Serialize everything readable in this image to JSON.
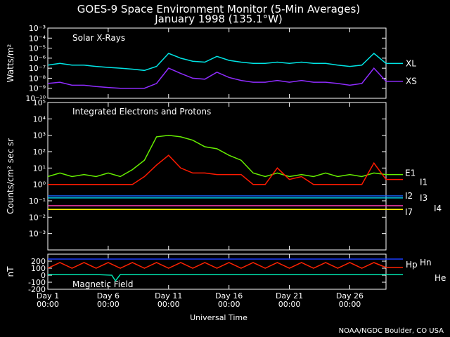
{
  "title": "GOES-9 Space Environment Monitor (5-Min Averages)",
  "subtitle": "January 1998 (135.1°W)",
  "credit": "NOAA/NGDC Boulder, CO USA",
  "colors": {
    "background": "#000000",
    "axes": "#ffffff",
    "xl": "#00e5e5",
    "xs": "#8f2cff",
    "e1": "#66ee00",
    "i1": "#ff1a00",
    "i2": "#1565ff",
    "i3": "#00c8e0",
    "i4": "#ff3fb0",
    "i7": "#ffee00",
    "hp": "#ff2200",
    "hn": "#1a3dff",
    "he": "#00e5b0"
  },
  "chart_data": [
    {
      "type": "line",
      "panel": "Solar X-Rays",
      "ylabel": "Watts/m²",
      "yscale": "log",
      "ylim": [
        1e-10,
        0.001
      ],
      "y_ticks": [
        "10⁻³",
        "10⁻⁴",
        "10⁻⁵",
        "10⁻⁶",
        "10⁻⁷",
        "10⁻⁸",
        "10⁻⁹",
        "10⁻¹⁰"
      ],
      "xlim": [
        1,
        29
      ],
      "series": [
        {
          "name": "XL",
          "colorKey": "xl",
          "x": [
            1,
            2,
            3,
            4,
            5,
            6,
            7,
            8,
            9,
            10,
            11,
            12,
            13,
            14,
            15,
            16,
            17,
            18,
            19,
            20,
            21,
            22,
            23,
            24,
            25,
            26,
            27,
            28,
            29
          ],
          "y": [
            2e-07,
            3e-07,
            2e-07,
            2e-07,
            1.5e-07,
            1.2e-07,
            1e-07,
            8e-08,
            6e-08,
            1.5e-07,
            3e-06,
            1e-06,
            5e-07,
            4e-07,
            1.5e-06,
            6e-07,
            4e-07,
            3e-07,
            3e-07,
            4e-07,
            3e-07,
            4e-07,
            3e-07,
            3e-07,
            2e-07,
            1.5e-07,
            2e-07,
            3e-06,
            3e-07
          ]
        },
        {
          "name": "XS",
          "colorKey": "xs",
          "x": [
            1,
            2,
            3,
            4,
            5,
            6,
            7,
            8,
            9,
            10,
            11,
            12,
            13,
            14,
            15,
            16,
            17,
            18,
            19,
            20,
            21,
            22,
            23,
            24,
            25,
            26,
            27,
            28,
            29
          ],
          "y": [
            3e-09,
            4e-09,
            2e-09,
            2e-09,
            1.5e-09,
            1.2e-09,
            1e-09,
            1e-09,
            1e-09,
            3e-09,
            1e-07,
            3e-08,
            1e-08,
            8e-09,
            4e-08,
            1.2e-08,
            6e-09,
            4e-09,
            4e-09,
            6e-09,
            4e-09,
            6e-09,
            4e-09,
            4e-09,
            3e-09,
            2e-09,
            3e-09,
            1e-07,
            5e-09
          ]
        }
      ]
    },
    {
      "type": "line",
      "panel": "Integrated Electrons and Protons",
      "ylabel": "Counts/cm² sec sr",
      "yscale": "log",
      "ylim": [
        0.0001,
        100000
      ],
      "y_ticks": [
        "10⁵",
        "10⁴",
        "10³",
        "10²",
        "10¹",
        "10⁰",
        "10⁻¹",
        "10⁻²",
        "10⁻³"
      ],
      "xlim": [
        1,
        29
      ],
      "series": [
        {
          "name": "E1",
          "colorKey": "e1",
          "x": [
            1,
            2,
            3,
            4,
            5,
            6,
            7,
            8,
            9,
            10,
            11,
            12,
            13,
            14,
            15,
            16,
            17,
            18,
            19,
            20,
            21,
            22,
            23,
            24,
            25,
            26,
            27,
            28,
            29
          ],
          "y": [
            3,
            5,
            3,
            4,
            3,
            5,
            3,
            8,
            30,
            800,
            1000,
            800,
            500,
            200,
            150,
            60,
            30,
            5,
            3,
            5,
            3,
            4,
            3,
            5,
            3,
            4,
            3,
            5,
            4
          ]
        },
        {
          "name": "I1",
          "colorKey": "i1",
          "x": [
            1,
            2,
            3,
            4,
            5,
            6,
            7,
            8,
            9,
            10,
            11,
            12,
            13,
            14,
            15,
            16,
            17,
            18,
            19,
            20,
            21,
            22,
            23,
            24,
            25,
            26,
            27,
            28,
            29
          ],
          "y": [
            1,
            1,
            1,
            1,
            1,
            1,
            1,
            1,
            3,
            15,
            60,
            10,
            5,
            5,
            4,
            4,
            4,
            1,
            1,
            10,
            2,
            3,
            1,
            1,
            1,
            1,
            1,
            20,
            2
          ]
        },
        {
          "name": "I2",
          "colorKey": "i2",
          "x": [
            1,
            5,
            10,
            15,
            20,
            25,
            29
          ],
          "y": [
            0.2,
            0.2,
            0.2,
            0.2,
            0.2,
            0.2,
            0.2
          ]
        },
        {
          "name": "I3",
          "colorKey": "i3",
          "x": [
            1,
            5,
            10,
            15,
            20,
            25,
            29
          ],
          "y": [
            0.15,
            0.15,
            0.15,
            0.15,
            0.15,
            0.15,
            0.15
          ]
        },
        {
          "name": "I4",
          "colorKey": "i4",
          "x": [
            1,
            5,
            10,
            15,
            20,
            25,
            29
          ],
          "y": [
            0.05,
            0.05,
            0.05,
            0.05,
            0.05,
            0.05,
            0.05
          ]
        },
        {
          "name": "I7",
          "colorKey": "i7",
          "x": [
            1,
            5,
            10,
            15,
            20,
            25,
            29
          ],
          "y": [
            0.03,
            0.03,
            0.03,
            0.03,
            0.03,
            0.03,
            0.03
          ]
        }
      ]
    },
    {
      "type": "line",
      "panel": "Magnetic Field",
      "ylabel": "nT",
      "ylim": [
        -200,
        300
      ],
      "y_ticks": [
        "200",
        "100",
        "0",
        "-100",
        "-200"
      ],
      "y_tick_values": [
        200,
        100,
        0,
        -100,
        -200
      ],
      "xlim": [
        1,
        29
      ],
      "series": [
        {
          "name": "Hp",
          "colorKey": "hp",
          "x": [
            1,
            2,
            3,
            4,
            5,
            6,
            7,
            8,
            9,
            10,
            11,
            12,
            13,
            14,
            15,
            16,
            17,
            18,
            19,
            20,
            21,
            22,
            23,
            24,
            25,
            26,
            27,
            28,
            29
          ],
          "y": [
            100,
            180,
            100,
            180,
            100,
            180,
            100,
            180,
            100,
            180,
            100,
            180,
            100,
            180,
            100,
            180,
            100,
            180,
            100,
            180,
            100,
            180,
            100,
            180,
            100,
            180,
            100,
            180,
            110
          ]
        },
        {
          "name": "Hn",
          "colorKey": "hn",
          "x": [
            1,
            5,
            10,
            15,
            20,
            25,
            29
          ],
          "y": [
            230,
            230,
            230,
            230,
            230,
            230,
            230
          ]
        },
        {
          "name": "He",
          "colorKey": "he",
          "x": [
            1,
            5,
            6.3,
            6.6,
            7,
            10,
            15,
            20,
            25,
            29
          ],
          "y": [
            10,
            10,
            0,
            -80,
            10,
            10,
            10,
            10,
            10,
            10
          ]
        }
      ]
    }
  ],
  "x_ticks": [
    {
      "day": 1,
      "line1": "Day 1",
      "line2": "00:00"
    },
    {
      "day": 6,
      "line1": "Day 6",
      "line2": "00:00"
    },
    {
      "day": 11,
      "line1": "Day 11",
      "line2": "00:00"
    },
    {
      "day": 16,
      "line1": "Day 16",
      "line2": "00:00"
    },
    {
      "day": 21,
      "line1": "Day 21",
      "line2": "00:00"
    },
    {
      "day": 26,
      "line1": "Day 26",
      "line2": "00:00"
    }
  ],
  "xlabel": "Universal Time"
}
